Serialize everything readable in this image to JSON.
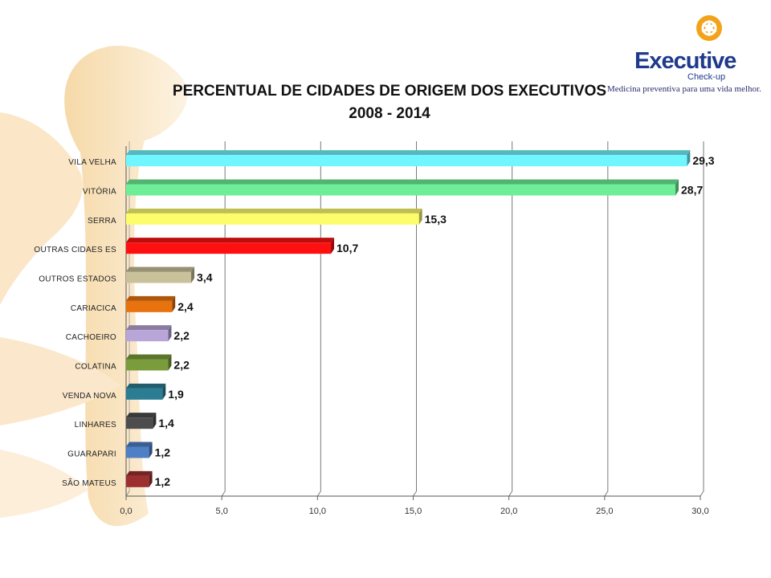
{
  "brand": {
    "name": "Executive",
    "sub": "Check-up",
    "tagline": "Medicina preventiva para uma vida melhor."
  },
  "chart_data": {
    "type": "bar",
    "orientation": "horizontal",
    "title": "PERCENTUAL DE CIDADES DE ORIGEM DOS EXECUTIVOS",
    "subtitle": "2008 - 2014",
    "xlabel": "",
    "ylabel": "",
    "xlim": [
      0,
      30
    ],
    "x_ticks": [
      "0,0",
      "5,0",
      "10,0",
      "15,0",
      "20,0",
      "25,0",
      "30,0"
    ],
    "grid": "vertical",
    "categories": [
      "VILA VELHA",
      "VITÓRIA",
      "SERRA",
      "OUTRAS CIDAES ES",
      "OUTROS ESTADOS",
      "CARIACICA",
      "CACHOEIRO",
      "COLATINA",
      "VENDA NOVA",
      "LINHARES",
      "GUARAPARI",
      "SÃO MATEUS"
    ],
    "values": [
      29.3,
      28.7,
      15.3,
      10.7,
      3.4,
      2.4,
      2.2,
      2.2,
      1.9,
      1.4,
      1.2,
      1.2
    ],
    "value_labels": [
      "29,3",
      "28,7",
      "15,3",
      "10,7",
      "3,4",
      "2,4",
      "2,2",
      "2,2",
      "1,9",
      "1,4",
      "1,2",
      "1,2"
    ],
    "colors": [
      "#6ff6ff",
      "#6eee96",
      "#fdfd6c",
      "#ff1010",
      "#c9c19a",
      "#e8720e",
      "#b9a6d8",
      "#7a9c3c",
      "#2b7d93",
      "#4d4d4d",
      "#4f7fc4",
      "#9c3030"
    ]
  }
}
